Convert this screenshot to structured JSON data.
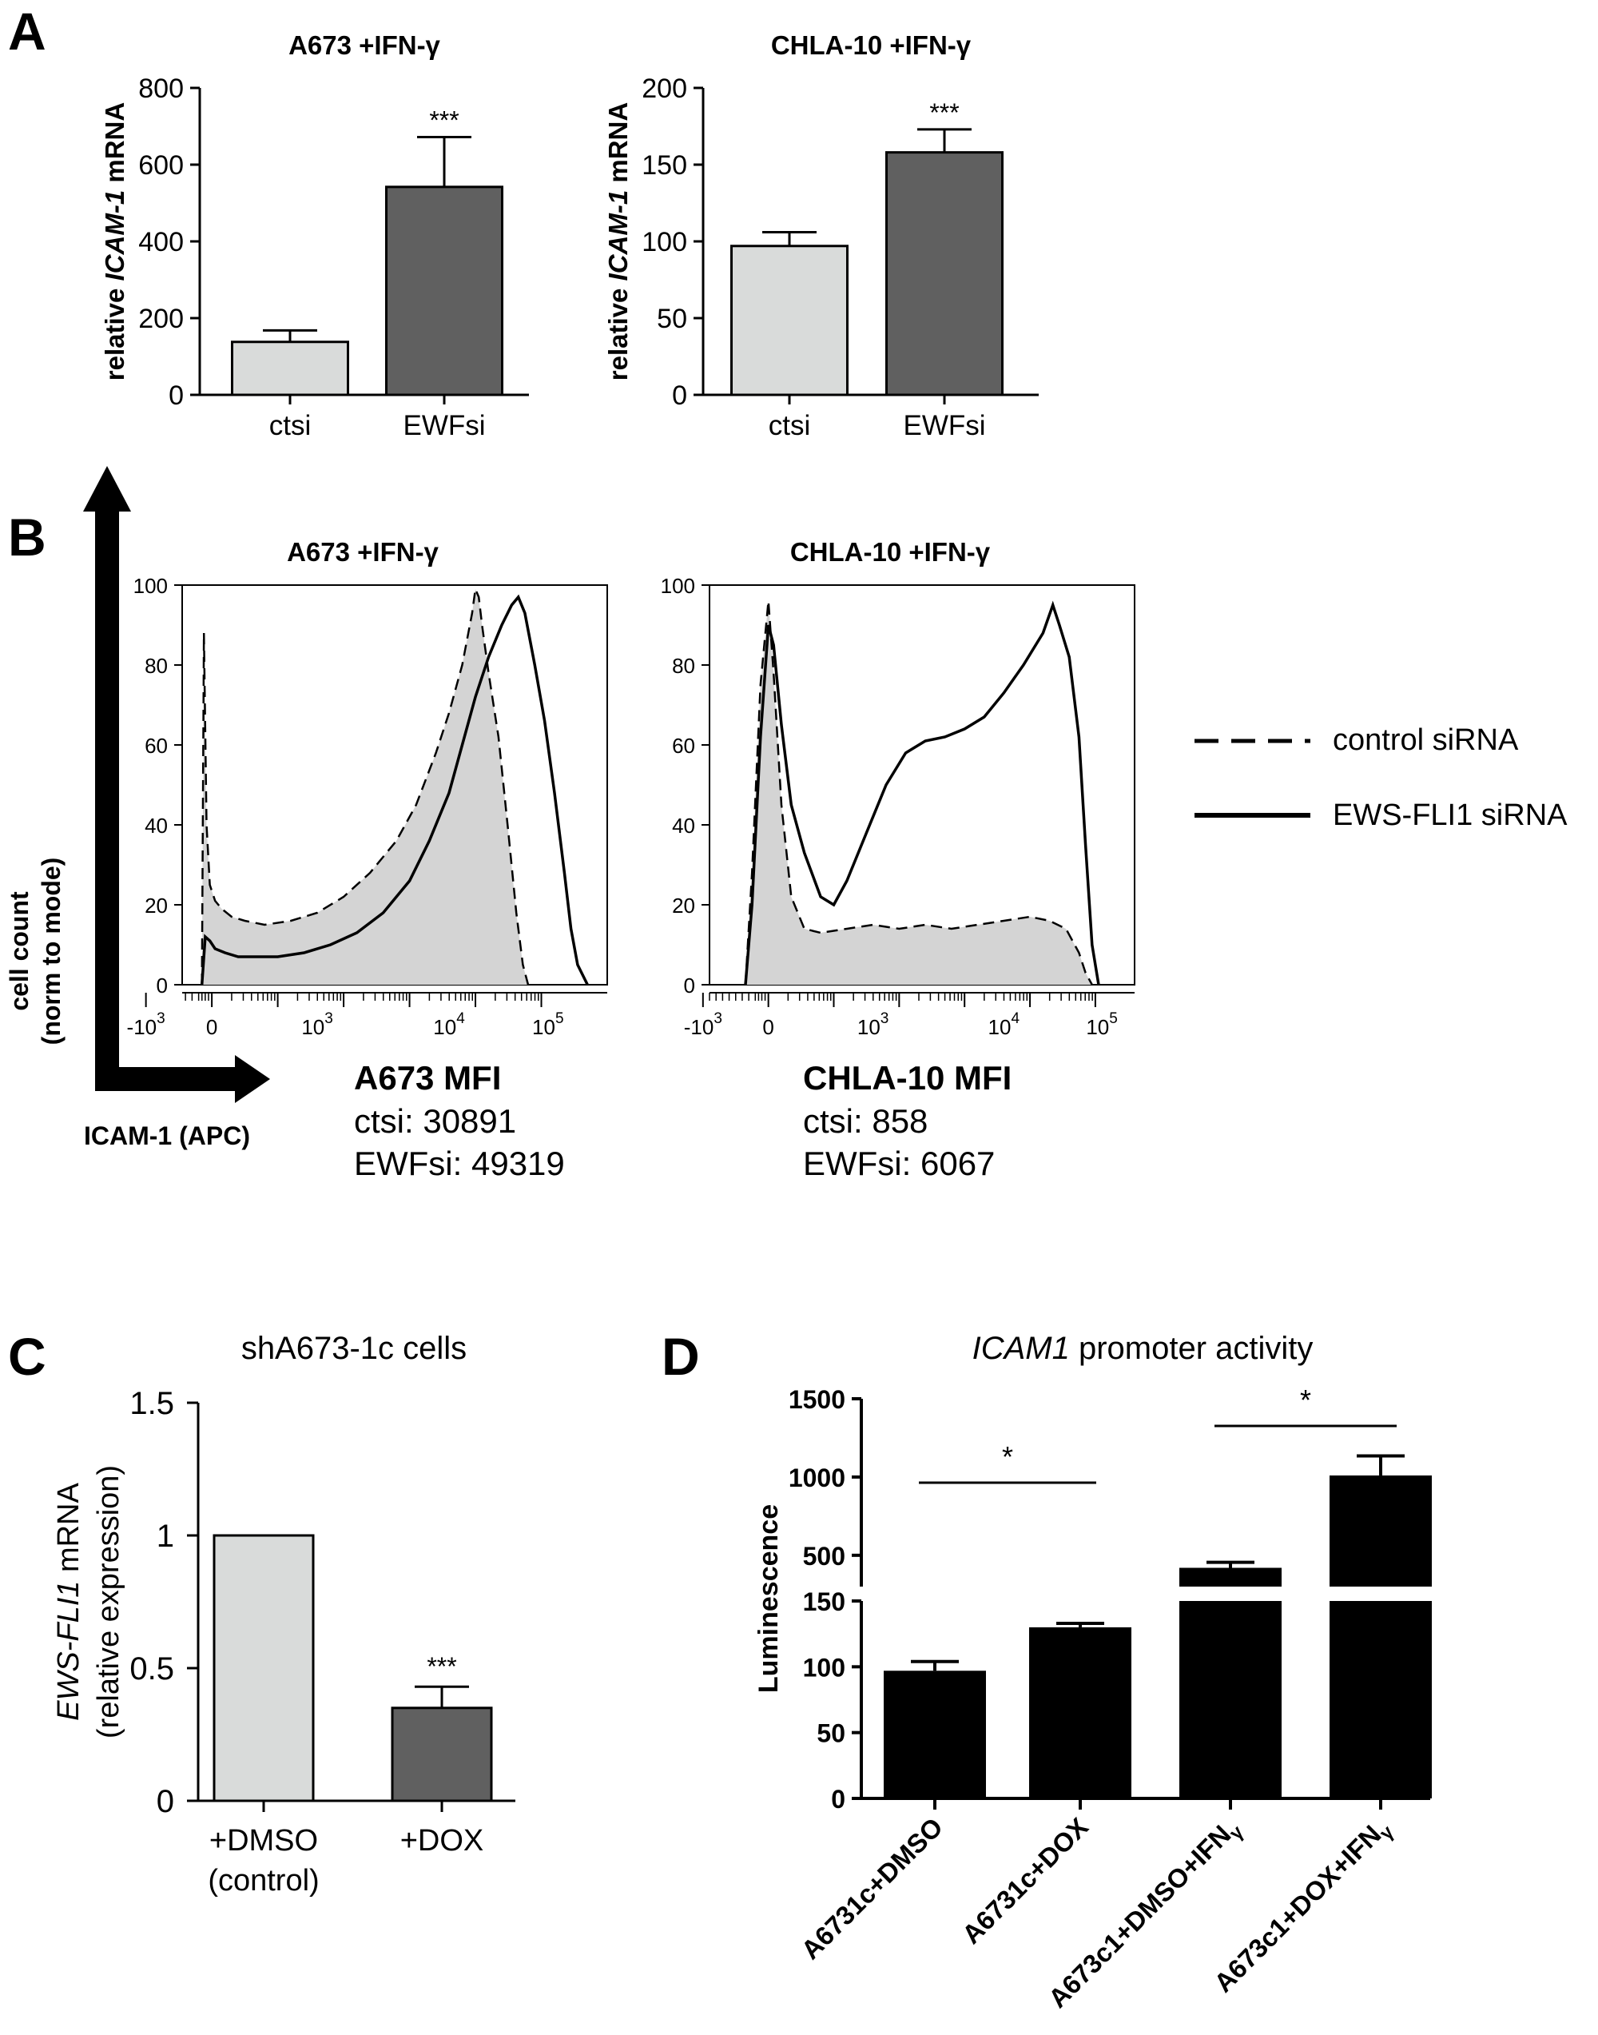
{
  "panel_letters": [
    "A",
    "B",
    "C",
    "D"
  ],
  "legend": {
    "control_label": "control siRNA",
    "ews_label": "EWS-FLI1 siRNA"
  },
  "axis_arrow": {
    "y_label_line1": "cell count",
    "y_label_line2": "(norm to mode)",
    "x_label": "ICAM-1 (APC)"
  },
  "mfi": {
    "a673": {
      "title": "A673 MFI",
      "ctsi": "ctsi: 30891",
      "ewfsi": "EWFsi: 49319"
    },
    "chla": {
      "title": "CHLA-10 MFI",
      "ctsi": "ctsi: 858",
      "ewfsi": "EWFsi: 6067"
    }
  },
  "colors": {
    "light_bar": "#d9dbda",
    "dark_bar": "#606060",
    "black_bar": "#000000",
    "hist_fill": "#d4d4d4"
  },
  "chart_data": [
    {
      "id": "A1",
      "type": "bar",
      "title": "A673 +IFN-γ",
      "ylabel_parts": [
        "relative ",
        "ICAM-1",
        " mRNA"
      ],
      "categories": [
        "ctsi",
        "EWFsi"
      ],
      "values": [
        138,
        542
      ],
      "errors": [
        30,
        130
      ],
      "significance": [
        "",
        "***"
      ],
      "ylim": [
        0,
        800
      ],
      "yticks": [
        0,
        200,
        400,
        600,
        800
      ]
    },
    {
      "id": "A2",
      "type": "bar",
      "title": "CHLA-10 +IFN-γ",
      "ylabel_parts": [
        "relative ",
        "ICAM-1",
        " mRNA"
      ],
      "categories": [
        "ctsi",
        "EWFsi"
      ],
      "values": [
        97,
        158
      ],
      "errors": [
        9,
        15
      ],
      "significance": [
        "",
        "***"
      ],
      "ylim": [
        0,
        200
      ],
      "yticks": [
        0,
        50,
        100,
        150,
        200
      ]
    },
    {
      "id": "B1",
      "type": "line",
      "title": "A673 +IFN-γ",
      "ylim": [
        0,
        100
      ],
      "yticks": [
        0,
        20,
        40,
        60,
        80,
        100
      ],
      "xticks": [
        "-10^3",
        "0",
        "10^3",
        "10^4",
        "10^5"
      ],
      "series": [
        {
          "name": "control siRNA",
          "points": [
            [
              -0.15,
              0
            ],
            [
              -0.12,
              88
            ],
            [
              -0.08,
              40
            ],
            [
              -0.03,
              25
            ],
            [
              0.05,
              21
            ],
            [
              0.15,
              19
            ],
            [
              0.3,
              17
            ],
            [
              0.5,
              16
            ],
            [
              0.8,
              15
            ],
            [
              1.2,
              16
            ],
            [
              1.6,
              18
            ],
            [
              2.0,
              22
            ],
            [
              2.4,
              28
            ],
            [
              2.8,
              36
            ],
            [
              3.1,
              45
            ],
            [
              3.4,
              58
            ],
            [
              3.6,
              68
            ],
            [
              3.8,
              80
            ],
            [
              3.95,
              93
            ],
            [
              4.0,
              99
            ],
            [
              4.05,
              97
            ],
            [
              4.1,
              90
            ],
            [
              4.2,
              78
            ],
            [
              4.35,
              62
            ],
            [
              4.5,
              38
            ],
            [
              4.62,
              18
            ],
            [
              4.72,
              5
            ],
            [
              4.8,
              0
            ]
          ]
        },
        {
          "name": "EWS-FLI1 siRNA",
          "points": [
            [
              -0.15,
              0
            ],
            [
              -0.1,
              12
            ],
            [
              -0.03,
              11
            ],
            [
              0.05,
              9
            ],
            [
              0.2,
              8
            ],
            [
              0.4,
              7
            ],
            [
              0.7,
              7
            ],
            [
              1.0,
              7
            ],
            [
              1.4,
              8
            ],
            [
              1.8,
              10
            ],
            [
              2.2,
              13
            ],
            [
              2.6,
              18
            ],
            [
              3.0,
              26
            ],
            [
              3.3,
              36
            ],
            [
              3.6,
              48
            ],
            [
              3.8,
              60
            ],
            [
              4.0,
              72
            ],
            [
              4.2,
              82
            ],
            [
              4.4,
              90
            ],
            [
              4.55,
              95
            ],
            [
              4.65,
              97
            ],
            [
              4.75,
              93
            ],
            [
              4.9,
              80
            ],
            [
              5.05,
              66
            ],
            [
              5.2,
              48
            ],
            [
              5.35,
              28
            ],
            [
              5.45,
              14
            ],
            [
              5.55,
              5
            ],
            [
              5.7,
              0
            ]
          ]
        }
      ]
    },
    {
      "id": "B2",
      "type": "line",
      "title": "CHLA-10 +IFN-γ",
      "ylim": [
        0,
        100
      ],
      "yticks": [
        0,
        20,
        40,
        60,
        80,
        100
      ],
      "xticks": [
        "-10^3",
        "0",
        "10^3",
        "10^4",
        "10^5"
      ],
      "series": [
        {
          "name": "control siRNA",
          "points": [
            [
              -0.35,
              0
            ],
            [
              -0.25,
              28
            ],
            [
              -0.12,
              75
            ],
            [
              0.0,
              96
            ],
            [
              0.08,
              78
            ],
            [
              0.2,
              45
            ],
            [
              0.35,
              22
            ],
            [
              0.55,
              14
            ],
            [
              0.8,
              13
            ],
            [
              1.2,
              14
            ],
            [
              1.6,
              15
            ],
            [
              2.0,
              14
            ],
            [
              2.4,
              15
            ],
            [
              2.8,
              14
            ],
            [
              3.2,
              15
            ],
            [
              3.6,
              16
            ],
            [
              4.0,
              17
            ],
            [
              4.3,
              16
            ],
            [
              4.55,
              14
            ],
            [
              4.75,
              8
            ],
            [
              4.85,
              3
            ],
            [
              4.95,
              0
            ]
          ]
        },
        {
          "name": "EWS-FLI1 siRNA",
          "points": [
            [
              -0.35,
              0
            ],
            [
              -0.25,
              20
            ],
            [
              -0.12,
              62
            ],
            [
              0.0,
              90
            ],
            [
              0.08,
              85
            ],
            [
              0.2,
              65
            ],
            [
              0.35,
              45
            ],
            [
              0.55,
              33
            ],
            [
              0.8,
              22
            ],
            [
              1.0,
              20
            ],
            [
              1.2,
              26
            ],
            [
              1.5,
              38
            ],
            [
              1.8,
              50
            ],
            [
              2.1,
              58
            ],
            [
              2.4,
              61
            ],
            [
              2.7,
              62
            ],
            [
              3.0,
              64
            ],
            [
              3.3,
              67
            ],
            [
              3.6,
              73
            ],
            [
              3.9,
              80
            ],
            [
              4.2,
              88
            ],
            [
              4.35,
              95
            ],
            [
              4.45,
              90
            ],
            [
              4.6,
              82
            ],
            [
              4.75,
              62
            ],
            [
              4.85,
              35
            ],
            [
              4.95,
              10
            ],
            [
              5.05,
              0
            ]
          ]
        }
      ]
    },
    {
      "id": "C",
      "type": "bar",
      "title": "shA673-1c cells",
      "ylabel_line1_parts": [
        "EWS-FLI1",
        " mRNA"
      ],
      "ylabel_line2": "(relative expression)",
      "categories": [
        "+DMSO (control)",
        "+DOX"
      ],
      "category_lines": [
        [
          "+DMSO",
          "(control)"
        ],
        [
          "+DOX"
        ]
      ],
      "values": [
        1.0,
        0.35
      ],
      "errors": [
        0,
        0.08
      ],
      "significance": [
        "",
        "***"
      ],
      "ylim": [
        0,
        1.5
      ],
      "yticks": [
        "0",
        "0.5",
        "1",
        "1.5"
      ]
    },
    {
      "id": "D",
      "type": "bar",
      "title_parts": [
        "ICAM1",
        " promoter activity"
      ],
      "ylabel": "Luminescence",
      "categories": [
        "A6731c+DMSO",
        "A6731c+DOX",
        "A673c1+DMSO+IFNγ",
        "A673c1+DOX+IFNγ"
      ],
      "tick_labels": [
        [
          "A6731c+DMSO",
          ""
        ],
        [
          "A6731c+DOX",
          ""
        ],
        [
          "A673c1+DMSO+IFN",
          "γ"
        ],
        [
          "A673c1+DOX+IFN",
          "γ"
        ]
      ],
      "values": [
        97,
        130,
        420,
        1010
      ],
      "errors": [
        7,
        3,
        35,
        125
      ],
      "axis_break": {
        "lower": [
          0,
          150
        ],
        "upper": [
          300,
          1500
        ]
      },
      "yticks_lower": [
        0,
        50,
        100,
        150
      ],
      "yticks_upper": [
        500,
        1000,
        1500
      ],
      "significance": [
        {
          "between": [
            0,
            1
          ],
          "label": "*"
        },
        {
          "between": [
            2,
            3
          ],
          "label": "*"
        }
      ]
    }
  ]
}
